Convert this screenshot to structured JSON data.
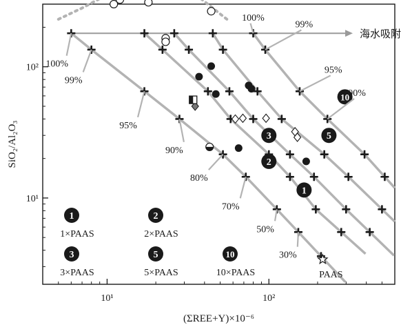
{
  "chart_data": {
    "type": "scatter",
    "title": "",
    "xlabel": "(ΣREE+Y)×10⁻⁶",
    "ylabel": "SiO₂/Al₂O₃",
    "xscale": "log",
    "yscale": "log",
    "xlim": [
      4,
      600
    ],
    "ylim": [
      2.2,
      300
    ],
    "x_ticks": [
      {
        "value": 10,
        "label": "10¹"
      },
      {
        "value": 100,
        "label": "10²"
      }
    ],
    "y_ticks": [
      {
        "value": 10,
        "label": "10¹"
      },
      {
        "value": 100,
        "label": "10²"
      }
    ],
    "colors": {
      "line": "#b3b3b3",
      "mark": "#1a1a1a",
      "frame": "#1a1a1a"
    },
    "mixing_lines": [
      {
        "pct": [
          "100%",
          "99%",
          "95%",
          "90%",
          "80%",
          "70%",
          "50%",
          "30%"
        ],
        "anchor": "1×PAAS",
        "points": [
          [
            6,
            180
          ],
          [
            8,
            135
          ],
          [
            17,
            65
          ],
          [
            28,
            40
          ],
          [
            52,
            21.5
          ],
          [
            72,
            14.5
          ],
          [
            112,
            8.2
          ],
          [
            152,
            5.5
          ],
          [
            210,
            3.6
          ]
        ]
      },
      {
        "anchor": "2×PAAS",
        "points": [
          [
            17,
            180
          ],
          [
            22,
            135
          ],
          [
            42,
            65
          ],
          [
            58,
            40
          ],
          [
            100,
            21.5
          ],
          [
            135,
            14.5
          ],
          [
            195,
            8.2
          ],
          [
            280,
            5.5
          ]
        ]
      },
      {
        "anchor": "3×PAAS",
        "points": [
          [
            26,
            180
          ],
          [
            32,
            135
          ],
          [
            57,
            65
          ],
          [
            80,
            40
          ],
          [
            135,
            21.5
          ],
          [
            190,
            14.5
          ],
          [
            300,
            8.2
          ],
          [
            420,
            5.5
          ]
        ]
      },
      {
        "anchor": "5×PAAS",
        "points": [
          [
            45,
            180
          ],
          [
            52,
            135
          ],
          [
            85,
            65
          ],
          [
            120,
            40
          ],
          [
            220,
            21.5
          ],
          [
            310,
            14.5
          ],
          [
            500,
            8.2
          ]
        ]
      },
      {
        "anchor": "10×PAAS",
        "points": [
          [
            80,
            180
          ],
          [
            95,
            135
          ],
          [
            155,
            65
          ],
          [
            230,
            40
          ],
          [
            390,
            21.5
          ],
          [
            520,
            14.5
          ]
        ]
      }
    ],
    "seawater_line": {
      "label": "海水吸附",
      "y": 180,
      "x_start": 6,
      "x_end": 330
    },
    "dotted_curve": {
      "points": [
        [
          5,
          230
        ],
        [
          7,
          280
        ],
        [
          9,
          330
        ]
      ]
    },
    "dotted_curve_2": {
      "points": [
        [
          38,
          330
        ],
        [
          55,
          230
        ]
      ]
    },
    "line_labels": [
      {
        "text": "100%",
        "x": 4.9,
        "y": 100
      },
      {
        "text": "99%",
        "x": 6.2,
        "y": 75
      },
      {
        "text": "95%",
        "x": 13.5,
        "y": 34
      },
      {
        "text": "90%",
        "x": 26,
        "y": 22
      },
      {
        "text": "80%",
        "x": 37,
        "y": 13.5
      },
      {
        "text": "70%",
        "x": 58,
        "y": 8.2
      },
      {
        "text": "50%",
        "x": 95,
        "y": 5.5
      },
      {
        "text": "30%",
        "x": 131,
        "y": 3.5
      },
      {
        "text": "100%",
        "x": 80,
        "y": 225
      },
      {
        "text": "99%",
        "x": 165,
        "y": 200
      },
      {
        "text": "95%",
        "x": 250,
        "y": 90
      },
      {
        "text": "90%",
        "x": 350,
        "y": 60
      }
    ],
    "anchors_legend": [
      {
        "id": "1",
        "label": "1×PAAS"
      },
      {
        "id": "2",
        "label": "2×PAAS"
      },
      {
        "id": "3",
        "label": "3×PAAS"
      },
      {
        "id": "5",
        "label": "5×PAAS"
      },
      {
        "id": "10",
        "label": "10×PAAS"
      }
    ],
    "anchor_markers": [
      {
        "id": "1",
        "x": 165,
        "y": 11.5
      },
      {
        "id": "2",
        "x": 100,
        "y": 19
      },
      {
        "id": "3",
        "x": 100,
        "y": 30
      },
      {
        "id": "5",
        "x": 235,
        "y": 30
      },
      {
        "id": "10",
        "x": 295,
        "y": 59
      }
    ],
    "paas": {
      "label": "PAAS",
      "x": 215,
      "y": 3.4
    },
    "series": [
      {
        "marker": "open-circle",
        "points": [
          [
            11,
            300
          ],
          [
            12,
            325
          ],
          [
            18,
            310
          ],
          [
            44,
            265
          ],
          [
            23,
            165
          ],
          [
            23,
            155
          ]
        ]
      },
      {
        "marker": "filled-circle",
        "points": [
          [
            37,
            84
          ],
          [
            44,
            101
          ],
          [
            75,
            72
          ],
          [
            78,
            68
          ],
          [
            47,
            62
          ],
          [
            65,
            24
          ],
          [
            170,
            19
          ]
        ]
      },
      {
        "marker": "half-circle",
        "points": [
          [
            43,
            24.5
          ]
        ]
      },
      {
        "marker": "open-diamond",
        "points": [
          [
            62,
            40
          ],
          [
            69,
            40.5
          ],
          [
            96,
            40.5
          ],
          [
            145,
            32
          ],
          [
            150,
            29
          ]
        ]
      },
      {
        "marker": "filled-diamond",
        "points": [
          [
            35,
            50
          ]
        ]
      },
      {
        "marker": "half-square",
        "points": [
          [
            34,
            56
          ]
        ]
      },
      {
        "marker": "star",
        "points": [
          [
            215,
            3.4
          ]
        ]
      }
    ]
  }
}
